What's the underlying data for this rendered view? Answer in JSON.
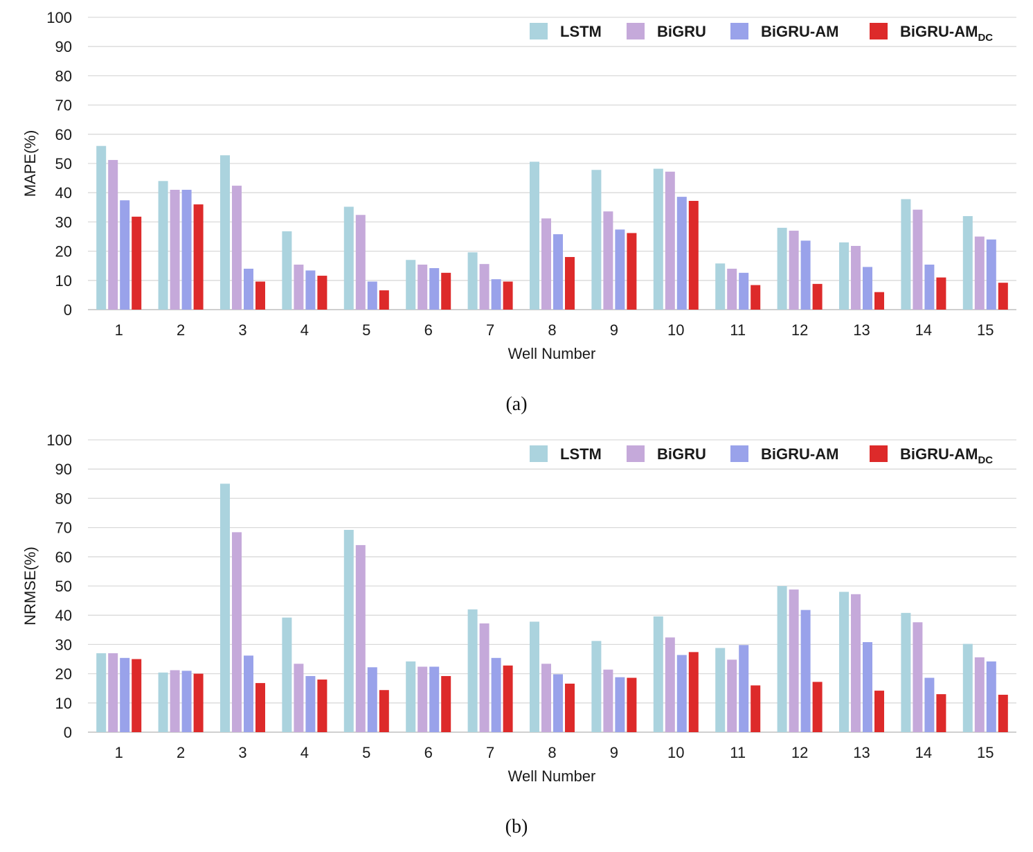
{
  "colors": {
    "LSTM": "#abd3de",
    "BiGRU": "#c5a9da",
    "BiGRU-AM": "#99a2ea",
    "BiGRU-AM_DC": "#dd2a2a"
  },
  "chart_data": [
    {
      "type": "bar",
      "caption": "(a)",
      "xlabel": "Well Number",
      "ylabel": "MAPE(%)",
      "ylim": [
        0,
        100
      ],
      "yticks": [
        "0",
        "10",
        "20",
        "30",
        "40",
        "50",
        "60",
        "70",
        "80",
        "90",
        "100"
      ],
      "grid": true,
      "legend_position": "top-right",
      "categories": [
        "1",
        "2",
        "3",
        "4",
        "5",
        "6",
        "7",
        "8",
        "9",
        "10",
        "11",
        "12",
        "13",
        "14",
        "15"
      ],
      "series": [
        {
          "name": "LSTM",
          "sub": "",
          "values": [
            56,
            44,
            52.8,
            26.8,
            35.2,
            17,
            19.6,
            50.6,
            47.8,
            48.2,
            15.8,
            28,
            23,
            37.8,
            32
          ]
        },
        {
          "name": "BiGRU",
          "sub": "",
          "values": [
            51.2,
            41,
            42.4,
            15.4,
            32.4,
            15.4,
            15.6,
            31.2,
            33.6,
            47.2,
            14,
            27,
            21.8,
            34.2,
            25
          ]
        },
        {
          "name": "BiGRU-AM",
          "sub": "",
          "values": [
            37.4,
            41,
            14,
            13.4,
            9.6,
            14.2,
            10.4,
            25.8,
            27.4,
            38.6,
            12.6,
            23.6,
            14.6,
            15.4,
            24
          ]
        },
        {
          "name": "BiGRU-AM",
          "sub": "DC",
          "values": [
            31.8,
            36,
            9.6,
            11.6,
            6.6,
            12.6,
            9.6,
            18,
            26.2,
            37.2,
            8.4,
            8.8,
            6,
            11,
            9.2
          ]
        }
      ]
    },
    {
      "type": "bar",
      "caption": "(b)",
      "xlabel": "Well Number",
      "ylabel": "NRMSE(%)",
      "ylim": [
        0,
        100
      ],
      "yticks": [
        "0",
        "10",
        "20",
        "30",
        "40",
        "50",
        "60",
        "70",
        "80",
        "90",
        "100"
      ],
      "grid": true,
      "legend_position": "top-right",
      "categories": [
        "1",
        "2",
        "3",
        "4",
        "5",
        "6",
        "7",
        "8",
        "9",
        "10",
        "11",
        "12",
        "13",
        "14",
        "15"
      ],
      "series": [
        {
          "name": "LSTM",
          "sub": "",
          "values": [
            27,
            20.4,
            85,
            39.2,
            69.2,
            24.2,
            42,
            37.8,
            31.2,
            39.6,
            28.8,
            50,
            48,
            40.8,
            30.2
          ]
        },
        {
          "name": "BiGRU",
          "sub": "",
          "values": [
            27,
            21.2,
            68.4,
            23.4,
            64,
            22.4,
            37.2,
            23.4,
            21.4,
            32.4,
            24.8,
            48.8,
            47.2,
            37.6,
            25.6
          ]
        },
        {
          "name": "BiGRU-AM",
          "sub": "",
          "values": [
            25.4,
            21,
            26.2,
            19.2,
            22.2,
            22.4,
            25.4,
            19.8,
            18.8,
            26.4,
            29.8,
            41.8,
            30.8,
            18.6,
            24.2
          ]
        },
        {
          "name": "BiGRU-AM",
          "sub": "DC",
          "values": [
            25,
            20,
            16.8,
            18,
            14.4,
            19.2,
            22.8,
            16.6,
            18.6,
            27.4,
            16,
            17.2,
            14.2,
            13,
            12.8
          ]
        }
      ]
    }
  ]
}
